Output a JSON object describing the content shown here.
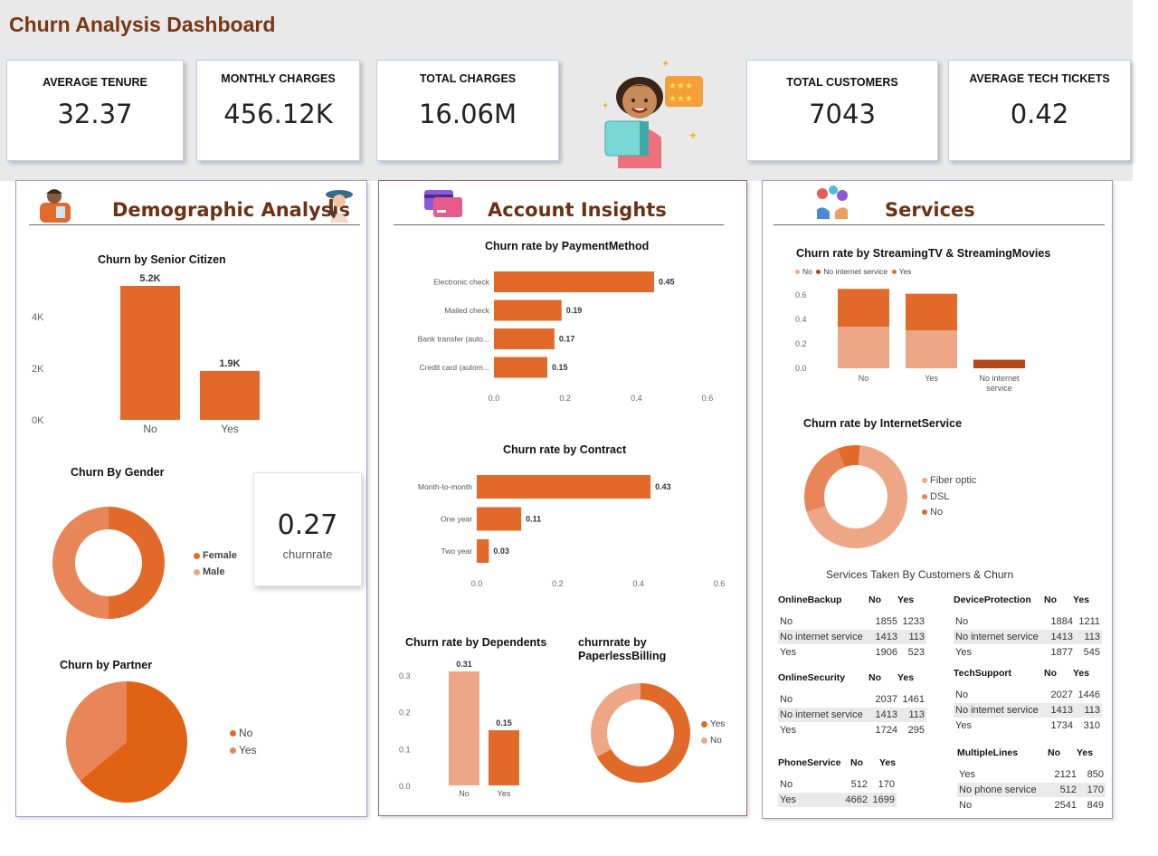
{
  "title": "Churn Analysis Dashboard",
  "kpis": [
    {
      "label": "AVERAGE TENURE",
      "value": "32.37"
    },
    {
      "label": "MONTHLY CHARGES",
      "value": "456.12K"
    },
    {
      "label": "TOTAL CHARGES",
      "value": "16.06M"
    },
    {
      "label": "TOTAL CUSTOMERS",
      "value": "7043"
    },
    {
      "label": "AVERAGE TECH TICKETS",
      "value": "0.42"
    }
  ],
  "colors": {
    "primary": "#e16a2a",
    "dark": "#b3461a",
    "light": "#eda787",
    "mid": "#e8865a",
    "title": "#7a3612"
  },
  "panels": {
    "demographic": {
      "title": "Demographic Analysis",
      "icons": [
        "person-icon",
        "woman-with-hat-icon"
      ]
    },
    "account": {
      "title": "Account Insights",
      "icon": "credit-cards-icon"
    },
    "services": {
      "title": "Services",
      "icon": "service-icons"
    }
  },
  "header_icon": "woman-with-box-and-stars-icon",
  "churnrate_card": {
    "value": "0.27",
    "label": "churnrate"
  },
  "tables": {
    "title": "Services Taken By Customers & Churn",
    "items": [
      {
        "name": "OnlineBackup",
        "cols": [
          "No",
          "Yes"
        ],
        "rows": [
          [
            "No",
            "1855",
            "1233"
          ],
          [
            "No internet service",
            "1413",
            "113"
          ],
          [
            "Yes",
            "1906",
            "523"
          ]
        ]
      },
      {
        "name": "DeviceProtection",
        "cols": [
          "No",
          "Yes"
        ],
        "rows": [
          [
            "No",
            "1884",
            "1211"
          ],
          [
            "No internet service",
            "1413",
            "113"
          ],
          [
            "Yes",
            "1877",
            "545"
          ]
        ]
      },
      {
        "name": "OnlineSecurity",
        "cols": [
          "No",
          "Yes"
        ],
        "rows": [
          [
            "No",
            "2037",
            "1461"
          ],
          [
            "No internet service",
            "1413",
            "113"
          ],
          [
            "Yes",
            "1724",
            "295"
          ]
        ]
      },
      {
        "name": "TechSupport",
        "cols": [
          "No",
          "Yes"
        ],
        "rows": [
          [
            "No",
            "2027",
            "1446"
          ],
          [
            "No internet service",
            "1413",
            "113"
          ],
          [
            "Yes",
            "1734",
            "310"
          ]
        ]
      },
      {
        "name": "PhoneService",
        "cols": [
          "No",
          "Yes"
        ],
        "rows": [
          [
            "No",
            "512",
            "170"
          ],
          [
            "Yes",
            "4662",
            "1699"
          ]
        ]
      },
      {
        "name": "MultipleLines",
        "cols": [
          "No",
          "Yes"
        ],
        "rows": [
          [
            "Yes",
            "2121",
            "850"
          ],
          [
            "No phone service",
            "512",
            "170"
          ],
          [
            "No",
            "2541",
            "849"
          ]
        ]
      }
    ]
  },
  "chart_data": [
    {
      "id": "senior",
      "type": "bar",
      "title": "Churn by Senior Citizen",
      "categories": [
        "No",
        "Yes"
      ],
      "values": [
        5200,
        1900
      ],
      "labels": [
        "5.2K",
        "1.9K"
      ],
      "yticks": [
        "0K",
        "2K",
        "4K"
      ],
      "ylim": [
        0,
        5200
      ]
    },
    {
      "id": "gender",
      "type": "pie",
      "title": "Churn By Gender",
      "donut": true,
      "categories": [
        "Female",
        "Male"
      ],
      "values": [
        0.5,
        0.5
      ]
    },
    {
      "id": "partner",
      "type": "pie",
      "title": "Churn by Partner",
      "donut": false,
      "categories": [
        "No",
        "Yes"
      ],
      "values": [
        0.64,
        0.36
      ]
    },
    {
      "id": "payment",
      "type": "bar",
      "orientation": "horizontal",
      "title": "Churn rate by PaymentMethod",
      "categories": [
        "Electronic check",
        "Mailed check",
        "Bank transfer (auto...",
        "Credit card (autom..."
      ],
      "values": [
        0.45,
        0.19,
        0.17,
        0.15
      ],
      "xticks": [
        "0.0",
        "0.2",
        "0.4",
        "0.6"
      ],
      "xlim": [
        0,
        0.6
      ]
    },
    {
      "id": "contract",
      "type": "bar",
      "orientation": "horizontal",
      "title": "Churn rate by Contract",
      "categories": [
        "Month-to-month",
        "One year",
        "Two year"
      ],
      "values": [
        0.43,
        0.11,
        0.03
      ],
      "xticks": [
        "0.0",
        "0.2",
        "0.4",
        "0.6"
      ],
      "xlim": [
        0,
        0.6
      ]
    },
    {
      "id": "dependents",
      "type": "bar",
      "title": "Churn rate by Dependents",
      "categories": [
        "No",
        "Yes"
      ],
      "values": [
        0.31,
        0.15
      ],
      "yticks": [
        "0.0",
        "0.1",
        "0.2",
        "0.3"
      ],
      "ylim": [
        0,
        0.31
      ]
    },
    {
      "id": "paperless",
      "type": "pie",
      "title": "churnrate by PaperlessBilling",
      "donut": true,
      "categories": [
        "Yes",
        "No"
      ],
      "values": [
        0.67,
        0.33
      ]
    },
    {
      "id": "streaming",
      "type": "bar",
      "stacked": true,
      "title": "Churn rate by StreamingTV & StreamingMovies",
      "legend": [
        "No",
        "No internet service",
        "Yes"
      ],
      "categories": [
        "No",
        "Yes",
        "No internet service"
      ],
      "series": [
        {
          "name": "No",
          "values": [
            0.34,
            0.31,
            0
          ]
        },
        {
          "name": "No internet service",
          "values": [
            0,
            0,
            0.07
          ]
        },
        {
          "name": "Yes",
          "values": [
            0.31,
            0.3,
            0
          ]
        }
      ],
      "yticks": [
        "0.0",
        "0.2",
        "0.4",
        "0.6"
      ],
      "ylim": [
        0,
        0.6
      ]
    },
    {
      "id": "internet",
      "type": "pie",
      "title": "Churn rate by InternetService",
      "donut": true,
      "categories": [
        "Fiber optic",
        "DSL",
        "No"
      ],
      "values": [
        0.69,
        0.24,
        0.07
      ]
    }
  ]
}
